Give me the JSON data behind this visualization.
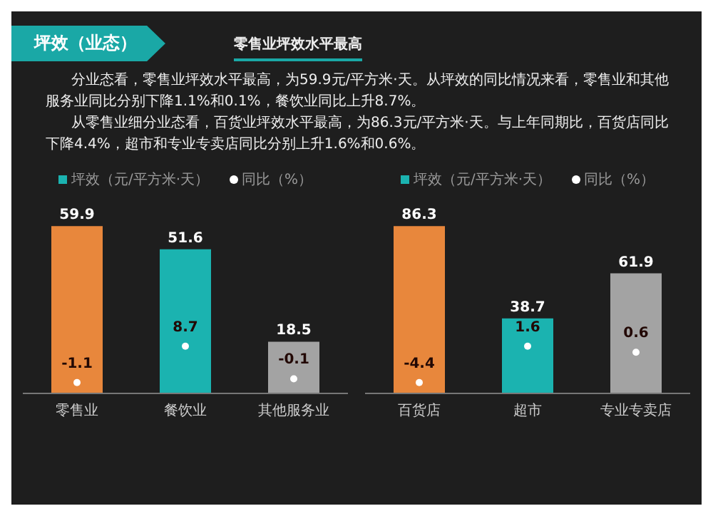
{
  "chart_data": [
    {
      "type": "bar",
      "title": "坪效（业态）",
      "subtitle": "零售业坪效水平最高",
      "annotations": [
        "分业态看，零售业坪效水平最高，为59.9元/平方米·天。从坪效的同比情况来看，零售业和其他服务业同比分别下降1.1%和0.1%，餐饮业同比上升8.7%。",
        "从零售业细分业态看，百货业坪效水平最高，为86.3元/平方米·天。与上年同期比，百货店同比下降4.4%，超市和专业专卖店同比分别上升1.6%和0.6%。"
      ],
      "categories": [
        "零售业",
        "餐饮业",
        "其他服务业"
      ],
      "series": [
        {
          "name": "坪效（元/平方米·天）",
          "type": "bar",
          "color": "#1bb3b0",
          "colors": [
            "#e8873c",
            "#1bb3b0",
            "#a3a3a3"
          ],
          "values": [
            59.9,
            51.6,
            18.5
          ]
        },
        {
          "name": "同比（%）",
          "type": "scatter",
          "color": "#ffffff",
          "axis": "y2",
          "values": [
            -1.1,
            8.7,
            -0.1
          ]
        }
      ],
      "data_labels": true,
      "legend": "top",
      "tick_labels": "x",
      "grid": false
    },
    {
      "type": "bar",
      "categories": [
        "百货店",
        "超市",
        "专业专卖店"
      ],
      "series": [
        {
          "name": "坪效（元/平方米·天）",
          "type": "bar",
          "color": "#1bb3b0",
          "colors": [
            "#e8873c",
            "#1bb3b0",
            "#a3a3a3"
          ],
          "values": [
            86.3,
            38.7,
            61.9
          ]
        },
        {
          "name": "同比（%）",
          "type": "scatter",
          "color": "#ffffff",
          "axis": "y2",
          "values": [
            -4.4,
            1.6,
            0.6
          ]
        }
      ],
      "data_labels": true,
      "legend": "top",
      "tick_labels": "x",
      "grid": false
    }
  ]
}
